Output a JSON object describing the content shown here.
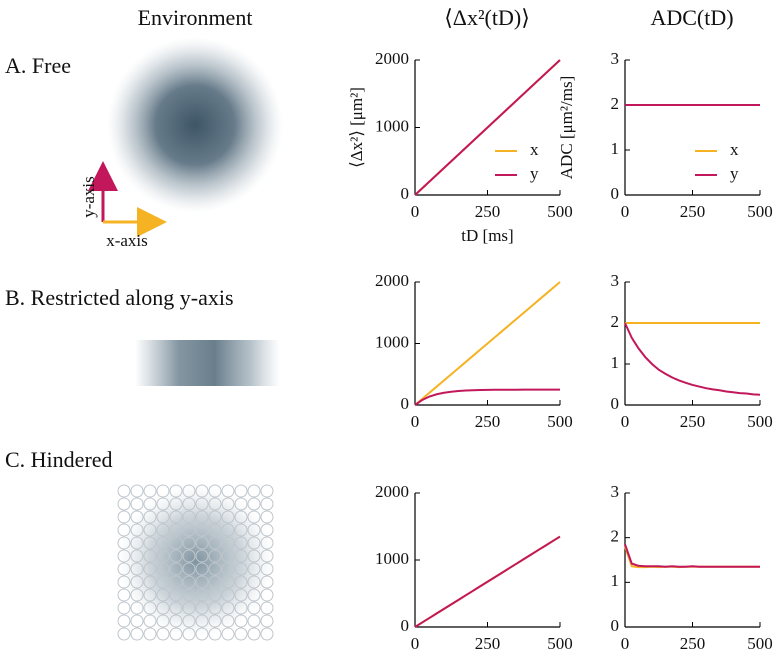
{
  "column_titles": [
    "Environment",
    "⟨Δx²(tD)⟩",
    "ADC(tD)"
  ],
  "panels": [
    {
      "label": "A. Free",
      "axis_labels": {
        "x": "x-axis",
        "y": "y-axis"
      }
    },
    {
      "label": "B. Restricted along y-axis"
    },
    {
      "label": "C. Hindered"
    }
  ],
  "chart_data": [
    {
      "type": "line",
      "ylabel": "⟨Δx²⟩ [μm²]",
      "xlabel": "tD [ms]",
      "legend": "lower right",
      "x": [
        0,
        25,
        50,
        75,
        100,
        125,
        150,
        175,
        200,
        225,
        250,
        275,
        300,
        325,
        350,
        375,
        400,
        425,
        450,
        475,
        500
      ],
      "series": [
        {
          "name": "x",
          "color": "#f5b324",
          "values": [
            0,
            100,
            200,
            300,
            400,
            500,
            600,
            700,
            800,
            900,
            1000,
            1100,
            1200,
            1300,
            1400,
            1500,
            1600,
            1700,
            1800,
            1900,
            2000
          ]
        },
        {
          "name": "y",
          "color": "#c2185b",
          "values": [
            0,
            100,
            200,
            300,
            400,
            500,
            600,
            700,
            800,
            900,
            1000,
            1100,
            1200,
            1300,
            1400,
            1500,
            1600,
            1700,
            1800,
            1900,
            2000
          ]
        }
      ],
      "xlim": [
        0,
        500
      ],
      "xticks": [
        0,
        250,
        500
      ],
      "ylim": [
        0,
        2000
      ],
      "yticks": [
        0,
        1000,
        2000
      ]
    },
    {
      "type": "line",
      "ylabel": "ADC [μm²/ms]",
      "legend": "lower right",
      "x": [
        0,
        25,
        50,
        75,
        100,
        125,
        150,
        175,
        200,
        225,
        250,
        275,
        300,
        325,
        350,
        375,
        400,
        425,
        450,
        475,
        500
      ],
      "series": [
        {
          "name": "x",
          "color": "#f5b324",
          "values": [
            2,
            2,
            2,
            2,
            2,
            2,
            2,
            2,
            2,
            2,
            2,
            2,
            2,
            2,
            2,
            2,
            2,
            2,
            2,
            2,
            2
          ]
        },
        {
          "name": "y",
          "color": "#c2185b",
          "values": [
            2,
            2,
            2,
            2,
            2,
            2,
            2,
            2,
            2,
            2,
            2,
            2,
            2,
            2,
            2,
            2,
            2,
            2,
            2,
            2,
            2
          ]
        }
      ],
      "xlim": [
        0,
        500
      ],
      "xticks": [
        0,
        250,
        500
      ],
      "ylim": [
        0,
        3
      ],
      "yticks": [
        0,
        1,
        2,
        3
      ]
    },
    {
      "type": "line",
      "x": [
        0,
        25,
        50,
        75,
        100,
        125,
        150,
        175,
        200,
        225,
        250,
        275,
        300,
        325,
        350,
        375,
        400,
        425,
        450,
        475,
        500
      ],
      "series": [
        {
          "color": "#f5b324",
          "values": [
            0,
            100,
            200,
            300,
            400,
            500,
            600,
            700,
            800,
            900,
            1000,
            1100,
            1200,
            1300,
            1400,
            1500,
            1600,
            1700,
            1800,
            1900,
            2000
          ]
        },
        {
          "color": "#c2185b",
          "values": [
            0,
            82,
            138,
            175,
            199,
            216,
            227,
            235,
            240,
            243,
            245,
            247,
            248,
            249,
            249,
            250,
            250,
            250,
            250,
            250,
            250
          ]
        }
      ],
      "xlim": [
        0,
        500
      ],
      "xticks": [
        0,
        250,
        500
      ],
      "ylim": [
        0,
        2000
      ],
      "yticks": [
        0,
        1000,
        2000
      ]
    },
    {
      "type": "line",
      "x": [
        0,
        25,
        50,
        75,
        100,
        125,
        150,
        175,
        200,
        225,
        250,
        275,
        300,
        325,
        350,
        375,
        400,
        425,
        450,
        475,
        500
      ],
      "series": [
        {
          "color": "#f5b324",
          "values": [
            2,
            2,
            2,
            2,
            2,
            2,
            2,
            2,
            2,
            2,
            2,
            2,
            2,
            2,
            2,
            2,
            2,
            2,
            2,
            2,
            2
          ]
        },
        {
          "color": "#c2185b",
          "values": [
            2,
            1.64,
            1.38,
            1.17,
            1.0,
            0.86,
            0.76,
            0.67,
            0.6,
            0.54,
            0.49,
            0.45,
            0.41,
            0.38,
            0.36,
            0.33,
            0.31,
            0.29,
            0.28,
            0.26,
            0.25
          ]
        }
      ],
      "xlim": [
        0,
        500
      ],
      "xticks": [
        0,
        250,
        500
      ],
      "ylim": [
        0,
        3
      ],
      "yticks": [
        0,
        1,
        2,
        3
      ]
    },
    {
      "type": "line",
      "x": [
        0,
        25,
        50,
        75,
        100,
        125,
        150,
        175,
        200,
        225,
        250,
        275,
        300,
        325,
        350,
        375,
        400,
        425,
        450,
        475,
        500
      ],
      "series": [
        {
          "color": "#f5b324",
          "values": [
            0,
            68,
            135,
            203,
            270,
            338,
            405,
            473,
            540,
            608,
            675,
            743,
            810,
            878,
            945,
            1013,
            1080,
            1148,
            1215,
            1283,
            1350
          ]
        },
        {
          "color": "#c2185b",
          "values": [
            0,
            68,
            135,
            203,
            270,
            338,
            405,
            473,
            540,
            608,
            675,
            743,
            810,
            878,
            945,
            1013,
            1080,
            1148,
            1215,
            1283,
            1350
          ]
        }
      ],
      "xlim": [
        0,
        500
      ],
      "xticks": [
        0,
        250,
        500
      ],
      "ylim": [
        0,
        2000
      ],
      "yticks": [
        0,
        1000,
        2000
      ]
    },
    {
      "type": "line",
      "x": [
        0,
        25,
        50,
        75,
        100,
        125,
        150,
        175,
        200,
        225,
        250,
        275,
        300,
        325,
        350,
        375,
        400,
        425,
        450,
        475,
        500
      ],
      "series": [
        {
          "color": "#f5b324",
          "values": [
            1.8,
            1.36,
            1.34,
            1.34,
            1.35,
            1.34,
            1.35,
            1.35,
            1.34,
            1.35,
            1.35,
            1.35,
            1.35,
            1.35,
            1.35,
            1.35,
            1.35,
            1.35,
            1.35,
            1.35,
            1.35
          ]
        },
        {
          "color": "#c2185b",
          "values": [
            1.85,
            1.42,
            1.37,
            1.36,
            1.36,
            1.36,
            1.35,
            1.36,
            1.35,
            1.35,
            1.36,
            1.35,
            1.35,
            1.35,
            1.35,
            1.35,
            1.35,
            1.35,
            1.35,
            1.35,
            1.35
          ]
        }
      ],
      "xlim": [
        0,
        500
      ],
      "xticks": [
        0,
        250,
        500
      ],
      "ylim": [
        0,
        3
      ],
      "yticks": [
        0,
        1,
        2,
        3
      ]
    }
  ]
}
